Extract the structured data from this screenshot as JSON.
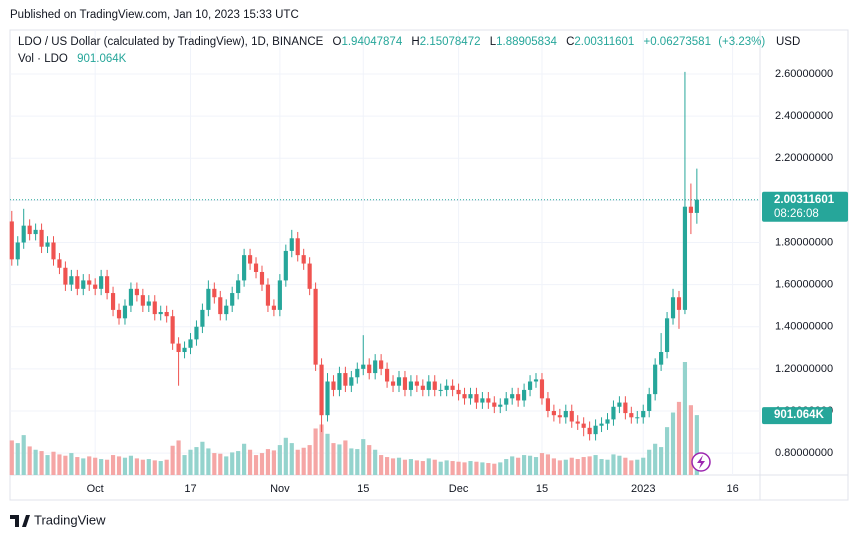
{
  "page": {
    "published": "Published on TradingView.com, Jan 10, 2023 15:33 UTC",
    "brand": "TradingView"
  },
  "chart_data": {
    "type": "candlestick",
    "legend": {
      "symbol": "LDO / US Dollar (calculated by TradingView), 1D, BINANCE",
      "o": "O",
      "h": "H",
      "l": "L",
      "c": "C",
      "change": "+0.06273581",
      "change_pct": "(+3.23%)",
      "volume_title": "Vol · LDO",
      "volume_last": "901.064K"
    },
    "currency": "USD",
    "countdown": "08:26:08",
    "up_color": "#26a69a",
    "down_color": "#ef5350",
    "volume_up_color": "#94d3cd",
    "volume_down_color": "#f5a6a5",
    "grid": true,
    "ylim": [
      0.696,
      2.809
    ],
    "yticks": [
      {
        "value": 0.8,
        "label": "0.80000000"
      },
      {
        "value": 1.0,
        "label": "1.00000000"
      },
      {
        "value": 1.2,
        "label": "1.20000000"
      },
      {
        "value": 1.4,
        "label": "1.40000000"
      },
      {
        "value": 1.6,
        "label": "1.60000000"
      },
      {
        "value": 1.8,
        "label": "1.80000000"
      },
      {
        "value": 2.0,
        "label": "2.00000000"
      },
      {
        "value": 2.2,
        "label": "2.20000000"
      },
      {
        "value": 2.4,
        "label": "2.40000000"
      },
      {
        "value": 2.6,
        "label": "2.60000000"
      }
    ],
    "xlim": [
      -0.3,
      125.6
    ],
    "xticks": [
      {
        "value": 14,
        "label": "Oct"
      },
      {
        "value": 30,
        "label": "17"
      },
      {
        "value": 45,
        "label": "Nov"
      },
      {
        "value": 59,
        "label": "15"
      },
      {
        "value": 75,
        "label": "Dec"
      },
      {
        "value": 89,
        "label": "15"
      },
      {
        "value": 106,
        "label": "2023"
      },
      {
        "value": 121,
        "label": "16"
      }
    ],
    "open": [
      1.9,
      1.72,
      1.8,
      1.88,
      1.84,
      1.86,
      1.78,
      1.8,
      1.72,
      1.68,
      1.6,
      1.64,
      1.58,
      1.62,
      1.6,
      1.58,
      1.64,
      1.56,
      1.48,
      1.44,
      1.5,
      1.58,
      1.55,
      1.5,
      1.52,
      1.46,
      1.47,
      1.45,
      1.32,
      1.28,
      1.3,
      1.34,
      1.4,
      1.48,
      1.58,
      1.54,
      1.46,
      1.5,
      1.56,
      1.62,
      1.74,
      1.7,
      1.66,
      1.6,
      1.5,
      1.48,
      1.62,
      1.76,
      1.82,
      1.74,
      1.7,
      1.58,
      1.22,
      0.98,
      1.14,
      1.1,
      1.18,
      1.12,
      1.16,
      1.2,
      1.22,
      1.18,
      1.24,
      1.2,
      1.14,
      1.12,
      1.16,
      1.1,
      1.14,
      1.12,
      1.1,
      1.14,
      1.1,
      1.1,
      1.12,
      1.1,
      1.08,
      1.06,
      1.08,
      1.04,
      1.06,
      1.04,
      1.02,
      1.03,
      1.06,
      1.08,
      1.05,
      1.1,
      1.14,
      1.15,
      1.06,
      1.0,
      0.98,
      0.97,
      1.0,
      0.95,
      0.94,
      0.92,
      0.89,
      0.93,
      0.94,
      0.96,
      1.02,
      1.04,
      0.99,
      0.97,
      0.97,
      1.0,
      1.08,
      1.22,
      1.28,
      1.44,
      1.54,
      1.48,
      1.97,
      1.94047874
    ],
    "high": [
      1.95,
      1.83,
      1.96,
      1.91,
      1.89,
      1.89,
      1.83,
      1.83,
      1.75,
      1.71,
      1.67,
      1.67,
      1.65,
      1.65,
      1.63,
      1.67,
      1.67,
      1.59,
      1.51,
      1.53,
      1.61,
      1.61,
      1.58,
      1.55,
      1.55,
      1.5,
      1.5,
      1.48,
      1.35,
      1.33,
      1.37,
      1.43,
      1.51,
      1.62,
      1.61,
      1.57,
      1.53,
      1.59,
      1.65,
      1.77,
      1.77,
      1.73,
      1.69,
      1.63,
      1.53,
      1.65,
      1.79,
      1.86,
      1.85,
      1.77,
      1.73,
      1.61,
      1.25,
      1.18,
      1.17,
      1.21,
      1.21,
      1.19,
      1.23,
      1.36,
      1.25,
      1.27,
      1.27,
      1.23,
      1.17,
      1.19,
      1.19,
      1.17,
      1.17,
      1.15,
      1.17,
      1.17,
      1.13,
      1.15,
      1.15,
      1.13,
      1.11,
      1.11,
      1.11,
      1.09,
      1.09,
      1.07,
      1.06,
      1.09,
      1.11,
      1.11,
      1.13,
      1.17,
      1.18,
      1.18,
      1.09,
      1.03,
      1.01,
      1.03,
      1.03,
      0.98,
      0.97,
      0.95,
      0.96,
      0.97,
      0.99,
      1.05,
      1.07,
      1.07,
      1.02,
      1.0,
      1.03,
      1.11,
      1.25,
      1.37,
      1.47,
      1.58,
      1.57,
      2.61,
      2.08,
      2.15078472
    ],
    "low": [
      1.69,
      1.69,
      1.77,
      1.81,
      1.81,
      1.75,
      1.75,
      1.69,
      1.65,
      1.57,
      1.57,
      1.55,
      1.55,
      1.57,
      1.55,
      1.55,
      1.53,
      1.45,
      1.41,
      1.41,
      1.47,
      1.52,
      1.47,
      1.47,
      1.43,
      1.43,
      1.42,
      1.29,
      1.12,
      1.25,
      1.27,
      1.31,
      1.37,
      1.45,
      1.51,
      1.43,
      1.43,
      1.47,
      1.53,
      1.59,
      1.67,
      1.63,
      1.57,
      1.47,
      1.45,
      1.45,
      1.59,
      1.73,
      1.71,
      1.67,
      1.55,
      1.19,
      0.9,
      0.95,
      1.07,
      1.07,
      1.09,
      1.09,
      1.13,
      1.17,
      1.15,
      1.15,
      1.17,
      1.11,
      1.09,
      1.09,
      1.07,
      1.07,
      1.09,
      1.07,
      1.07,
      1.07,
      1.07,
      1.07,
      1.07,
      1.05,
      1.03,
      1.03,
      1.01,
      1.01,
      1.01,
      0.99,
      0.99,
      1.0,
      1.03,
      1.02,
      1.02,
      1.07,
      1.11,
      1.03,
      0.97,
      0.95,
      0.94,
      0.94,
      0.92,
      0.91,
      0.88,
      0.86,
      0.86,
      0.9,
      0.91,
      0.93,
      0.99,
      0.96,
      0.94,
      0.94,
      0.94,
      0.97,
      1.05,
      1.19,
      1.25,
      1.41,
      1.39,
      1.46,
      1.84,
      1.88905834
    ],
    "close": [
      1.72,
      1.8,
      1.88,
      1.84,
      1.86,
      1.78,
      1.8,
      1.72,
      1.68,
      1.6,
      1.64,
      1.58,
      1.62,
      1.6,
      1.58,
      1.64,
      1.56,
      1.48,
      1.44,
      1.5,
      1.58,
      1.55,
      1.5,
      1.52,
      1.46,
      1.47,
      1.45,
      1.32,
      1.28,
      1.3,
      1.34,
      1.4,
      1.48,
      1.58,
      1.54,
      1.46,
      1.5,
      1.56,
      1.62,
      1.74,
      1.7,
      1.66,
      1.6,
      1.5,
      1.48,
      1.62,
      1.76,
      1.82,
      1.74,
      1.7,
      1.58,
      1.22,
      0.98,
      1.14,
      1.1,
      1.18,
      1.12,
      1.16,
      1.2,
      1.22,
      1.18,
      1.24,
      1.2,
      1.14,
      1.12,
      1.16,
      1.1,
      1.14,
      1.12,
      1.1,
      1.14,
      1.1,
      1.1,
      1.12,
      1.1,
      1.08,
      1.06,
      1.08,
      1.04,
      1.06,
      1.04,
      1.02,
      1.03,
      1.06,
      1.08,
      1.05,
      1.1,
      1.14,
      1.15,
      1.06,
      1.0,
      0.98,
      0.97,
      1.0,
      0.95,
      0.94,
      0.92,
      0.89,
      0.93,
      0.94,
      0.96,
      1.02,
      1.04,
      0.99,
      0.97,
      0.97,
      1.0,
      1.08,
      1.22,
      1.28,
      1.44,
      1.54,
      1.48,
      1.97,
      1.9403802,
      2.00311601
    ],
    "volume": [
      520000,
      480000,
      600000,
      430000,
      380000,
      360000,
      300000,
      350000,
      310000,
      290000,
      330000,
      270000,
      250000,
      280000,
      260000,
      240000,
      230000,
      300000,
      280000,
      260000,
      290000,
      250000,
      230000,
      240000,
      220000,
      210000,
      230000,
      440000,
      520000,
      300000,
      380000,
      420000,
      500000,
      400000,
      330000,
      320000,
      280000,
      340000,
      360000,
      470000,
      380000,
      300000,
      330000,
      390000,
      370000,
      450000,
      560000,
      480000,
      380000,
      410000,
      450000,
      700000,
      760000,
      620000,
      480000,
      460000,
      520000,
      400000,
      390000,
      540000,
      450000,
      380000,
      300000,
      270000,
      250000,
      260000,
      230000,
      240000,
      220000,
      210000,
      250000,
      230000,
      200000,
      220000,
      210000,
      200000,
      190000,
      210000,
      200000,
      190000,
      180000,
      170000,
      190000,
      240000,
      280000,
      260000,
      300000,
      290000,
      270000,
      330000,
      310000,
      250000,
      220000,
      230000,
      260000,
      240000,
      270000,
      280000,
      300000,
      240000,
      230000,
      310000,
      290000,
      260000,
      220000,
      230000,
      260000,
      380000,
      470000,
      420000,
      720000,
      940000,
      1100000,
      1700000,
      1050000,
      901064
    ]
  }
}
